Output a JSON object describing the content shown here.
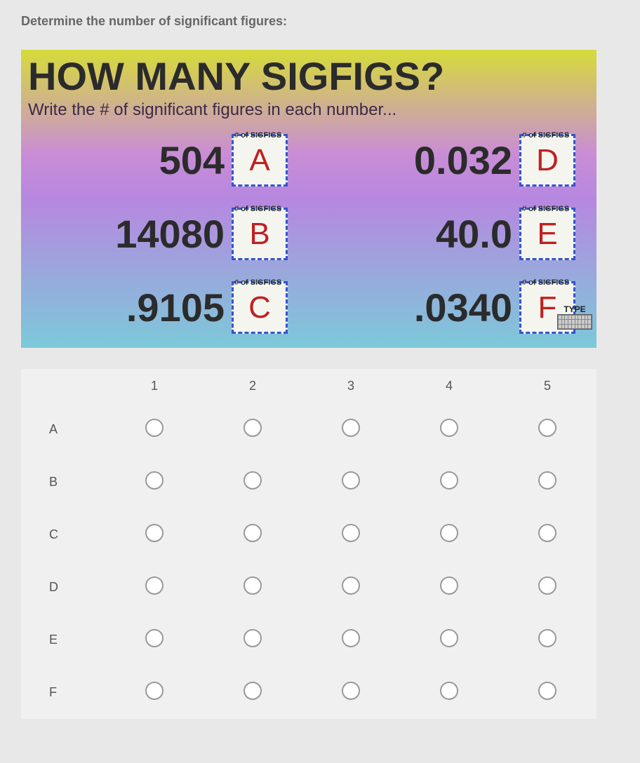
{
  "prompt": "Determine the number of significant figures:",
  "worksheet": {
    "title": "HOW MANY SIGFIGS?",
    "subtitle": "Write the # of significant figures in each number...",
    "box_label": "# of SIGFIGS",
    "type_label": "TYPE",
    "items": [
      {
        "number": "504",
        "letter": "A"
      },
      {
        "number": "0.032",
        "letter": "D"
      },
      {
        "number": "14080",
        "letter": "B"
      },
      {
        "number": "40.0",
        "letter": "E"
      },
      {
        "number": ".9105",
        "letter": "C"
      },
      {
        "number": ".0340",
        "letter": "F"
      }
    ],
    "gradient_colors": [
      "#d6db3a",
      "#c98dd6",
      "#b787e0",
      "#7cc9d9"
    ],
    "title_color": "#2b2b2b",
    "box_border_color": "#3355cc",
    "box_bg_color": "#f5f5f0",
    "handwriting_color": "#c02020",
    "title_fontsize": 56,
    "number_fontsize": 56,
    "subtitle_fontsize": 24
  },
  "answer_grid": {
    "columns": [
      "1",
      "2",
      "3",
      "4",
      "5"
    ],
    "rows": [
      "A",
      "B",
      "C",
      "D",
      "E",
      "F"
    ],
    "radio_border_color": "#999999",
    "radio_bg_color": "#ffffff"
  }
}
